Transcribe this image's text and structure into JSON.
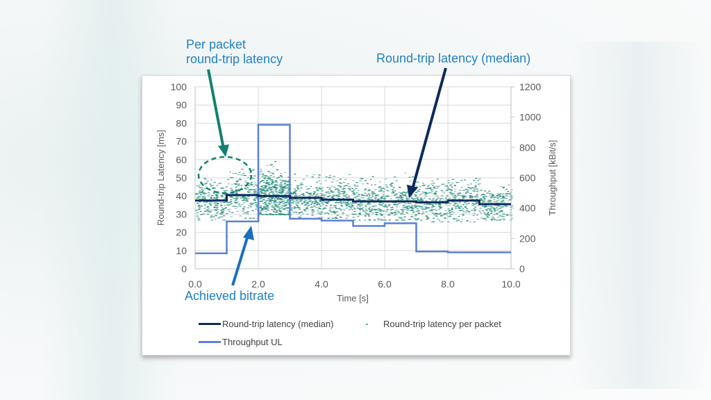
{
  "annotations": {
    "per_packet_line1": "Per packet",
    "per_packet_line2": "round-trip latency",
    "median": "Round-trip latency (median)",
    "bitrate": "Achieved bitrate"
  },
  "legend": {
    "median": "Round-trip latency (median)",
    "per_packet": "Round-trip latency per packet",
    "throughput": "Throughput UL"
  },
  "axes": {
    "xlabel": "Time [s]",
    "ylabel_left": "Round-trip Latency [ms]",
    "ylabel_right": "Throughput  [kBit/s]",
    "x_ticks": [
      "0.0",
      "2.0",
      "4.0",
      "6.0",
      "8.0",
      "10.0"
    ],
    "y_left_ticks": [
      "0",
      "10",
      "20",
      "30",
      "40",
      "50",
      "60",
      "70",
      "80",
      "90",
      "100"
    ],
    "y_right_ticks": [
      "0",
      "200",
      "400",
      "600",
      "800",
      "1000",
      "1200"
    ]
  },
  "colors": {
    "median": "#0d2a5c",
    "per_packet": "#1f8a78",
    "throughput": "#5b7fd8",
    "annotation_text": "#1e7fc8",
    "arrow_green": "#12806e",
    "arrow_blue": "#1a6fbf",
    "arrow_navy": "#0d2a5c"
  },
  "chart_data": {
    "type": "line",
    "title": "",
    "xlabel": "Time [s]",
    "ylabel": "Round-trip Latency [ms]",
    "y2label": "Throughput [kBit/s]",
    "xlim": [
      0,
      10
    ],
    "ylim": [
      0,
      100
    ],
    "y2lim": [
      0,
      1200
    ],
    "grid": true,
    "legend_position": "bottom",
    "series": [
      {
        "name": "Round-trip latency (median)",
        "axis": "left",
        "style": "step",
        "x": [
          0,
          1,
          2,
          3,
          4,
          5,
          6,
          7,
          8,
          9,
          10
        ],
        "values": [
          37.5,
          40.5,
          40.0,
          39.0,
          38.0,
          37.0,
          37.0,
          36.5,
          37.5,
          35.5,
          35.5
        ]
      },
      {
        "name": "Throughput UL",
        "axis": "right",
        "style": "step",
        "x": [
          0,
          1,
          2,
          3,
          4,
          5,
          6,
          7,
          8,
          9,
          10
        ],
        "values": [
          102,
          312,
          950,
          330,
          318,
          282,
          300,
          114,
          108,
          108,
          108
        ]
      },
      {
        "name": "Round-trip latency per packet",
        "axis": "left",
        "style": "scatter",
        "description": "dense per-packet scatter, mostly 28-50 ms, densest 2-3 s (up to ~60 ms), sparse outliers 50-60 ms",
        "x_ranges": [
          [
            0,
            1
          ],
          [
            1,
            2
          ],
          [
            2,
            3
          ],
          [
            3,
            4
          ],
          [
            4,
            5
          ],
          [
            5,
            6
          ],
          [
            6,
            7
          ],
          [
            7,
            8
          ],
          [
            8,
            9
          ],
          [
            9,
            10
          ]
        ],
        "approx_ranges_ms": [
          [
            27,
            50
          ],
          [
            28,
            55
          ],
          [
            30,
            60
          ],
          [
            28,
            53
          ],
          [
            28,
            52
          ],
          [
            27,
            52
          ],
          [
            27,
            53
          ],
          [
            26,
            51
          ],
          [
            26,
            50
          ],
          [
            27,
            48
          ]
        ]
      }
    ],
    "annotations": [
      {
        "text": "Per packet round-trip latency",
        "target": "dashed ellipse around outliers t≈0.2-1.2 s, 45-60 ms"
      },
      {
        "text": "Round-trip latency (median)",
        "target": "median line near t≈6.8 s"
      },
      {
        "text": "Achieved bitrate",
        "target": "throughput step near t≈1.8 s"
      }
    ]
  }
}
